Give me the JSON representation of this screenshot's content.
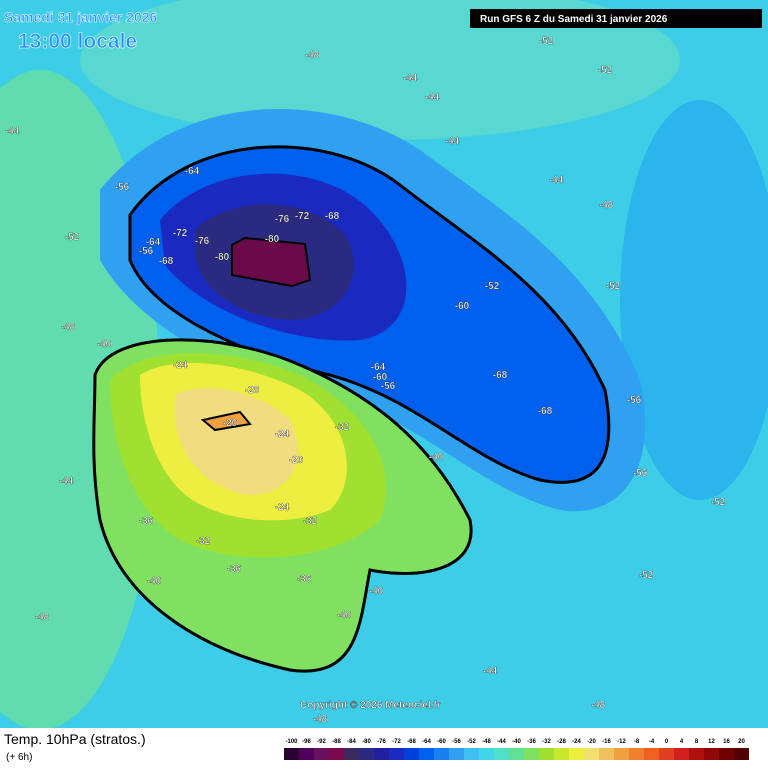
{
  "header": {
    "date": "Samedi 31 janvier 2026",
    "local_time": "13:00 locale",
    "run": "Run GFS 6 Z du Samedi 31 janvier 2026"
  },
  "footer": {
    "title": "Temp. 10hPa (stratos.)",
    "lead": "(+ 6h)",
    "copyright": "Copyright © 2026 Meteociel.fr"
  },
  "colorbar": {
    "values": [
      -100,
      -96,
      -92,
      -88,
      -84,
      -80,
      -76,
      -72,
      -68,
      -64,
      -60,
      -56,
      -52,
      -48,
      -44,
      -40,
      -36,
      -32,
      -28,
      -24,
      -20,
      -16,
      -12,
      -8,
      -4,
      0,
      4,
      8,
      12,
      16,
      20
    ],
    "colors": [
      "#2a0030",
      "#50005a",
      "#6a1060",
      "#7a0a4a",
      "#3a2a60",
      "#2a2a80",
      "#2020a0",
      "#1a2ac0",
      "#0040dd",
      "#0060ee",
      "#1a80f0",
      "#30a0f0",
      "#40c0f0",
      "#40d8e8",
      "#50e0c8",
      "#60e090",
      "#80e060",
      "#a0e030",
      "#c8e830",
      "#eeee40",
      "#f0e070",
      "#f0c060",
      "#f0a040",
      "#f08030",
      "#f06020",
      "#e04020",
      "#d02020",
      "#b01010",
      "#900808",
      "#700000",
      "#500000"
    ]
  },
  "contour_labels": [
    -64,
    -72,
    -76,
    -80,
    -80,
    -76,
    -72,
    -68,
    -64,
    -68,
    -56,
    -60,
    -64,
    -60,
    -56,
    -68,
    -68,
    -56,
    -56,
    -52,
    -52,
    -52,
    -52,
    -48,
    -44,
    -44,
    -44,
    -44,
    -48,
    -24,
    -28,
    -20,
    -24,
    -32,
    -20,
    -24,
    -32,
    -32,
    -36,
    -36,
    -36,
    -40,
    -40,
    -40,
    -40,
    -44,
    -48,
    -48,
    -44,
    -48,
    -52,
    -52,
    -56,
    -52,
    -48,
    -44,
    -40
  ]
}
